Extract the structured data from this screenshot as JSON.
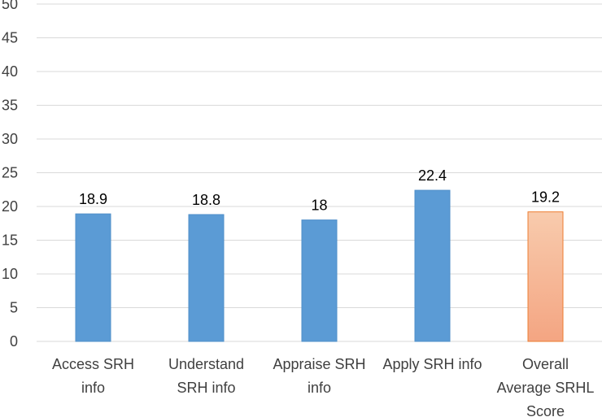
{
  "chart_data": {
    "type": "bar",
    "categories": [
      "Access SRH\ninfo",
      "Understand\nSRH info",
      "Appraise SRH\ninfo",
      "Apply SRH info",
      "Overall\nAverage SRHL\nScore"
    ],
    "values": [
      18.9,
      18.8,
      18,
      22.4,
      19.2
    ],
    "colors": [
      "#5b9bd5",
      "#5b9bd5",
      "#5b9bd5",
      "#5b9bd5",
      "#f6b596"
    ],
    "ylim": [
      0,
      50
    ],
    "yticks": [
      0,
      5,
      10,
      15,
      20,
      25,
      30,
      35,
      40,
      45,
      50
    ],
    "grid": true
  }
}
